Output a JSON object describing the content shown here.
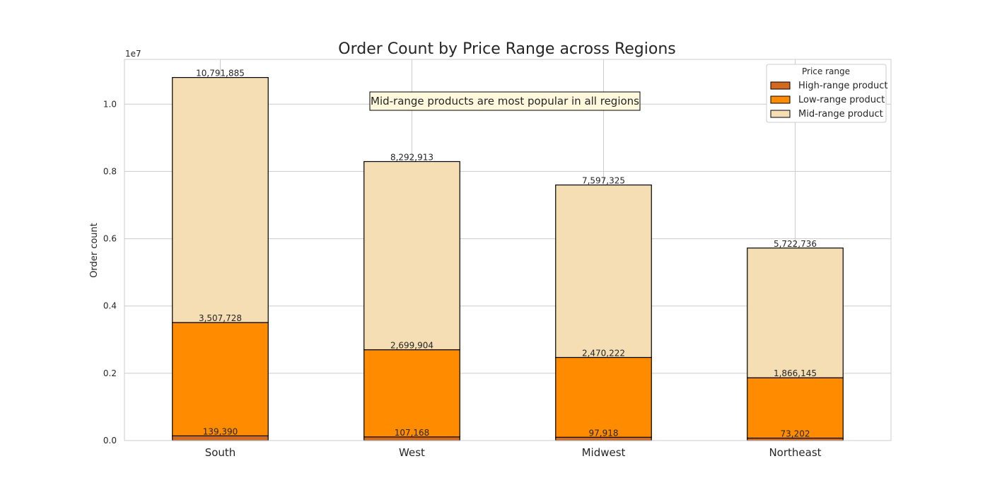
{
  "chart_data": {
    "type": "bar",
    "stacked": true,
    "title": "Order Count by Price Range across Regions",
    "xlabel": "",
    "ylabel": "Order count",
    "axis_multiplier_label": "1e7",
    "ylim": [
      0,
      11330000
    ],
    "ytick_values": [
      0,
      2000000,
      4000000,
      6000000,
      8000000,
      10000000
    ],
    "ytick_labels": [
      "0.0",
      "0.2",
      "0.4",
      "0.6",
      "0.8",
      "1.0"
    ],
    "categories": [
      "South",
      "West",
      "Midwest",
      "Northeast"
    ],
    "series": [
      {
        "name": "High-range product",
        "color": "#d2691e",
        "values": [
          139390,
          107168,
          97918,
          73202
        ]
      },
      {
        "name": "Low-range product",
        "color": "#ff8c00",
        "values": [
          3368338,
          2592736,
          2372304,
          1792943
        ]
      },
      {
        "name": "Mid-range product",
        "color": "#f5deb3",
        "values": [
          7284157,
          5593009,
          5127103,
          3856591
        ]
      }
    ],
    "data_labels": [
      [
        "139,390",
        "3,507,728",
        "10,791,885"
      ],
      [
        "107,168",
        "2,699,904",
        "8,292,913"
      ],
      [
        "97,918",
        "2,470,222",
        "7,597,325"
      ],
      [
        "73,202",
        "1,866,145",
        "5,722,736"
      ]
    ],
    "annotation": "Mid-range products are most popular in all regions",
    "legend": {
      "title": "Price range",
      "position": "top-right"
    },
    "grid": true
  }
}
